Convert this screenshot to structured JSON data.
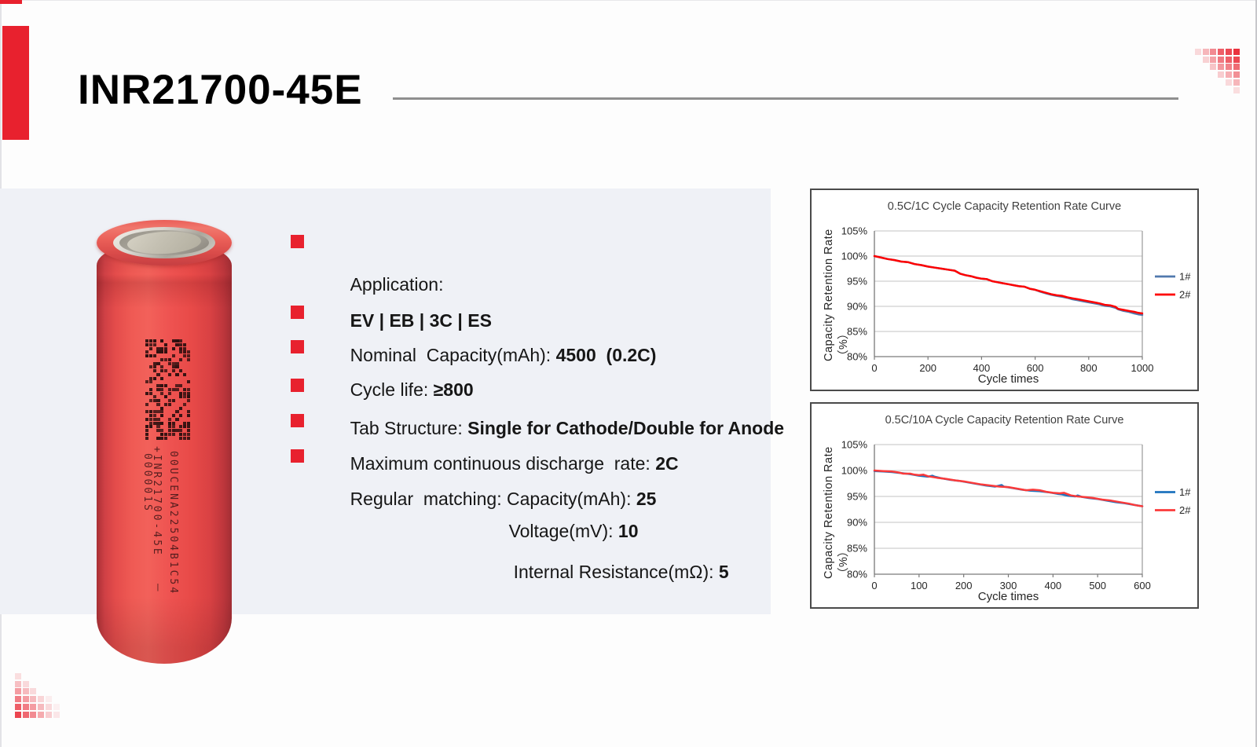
{
  "page": {
    "title": "INR21700-45E"
  },
  "colors": {
    "accent": "#e8212e",
    "panel": "#eff1f6",
    "title_rule": "#8f8f8f"
  },
  "battery": {
    "prints": [
      "+INR21700-45E   －",
      "00UCENA22504B1C54",
      "000001S"
    ]
  },
  "specs": {
    "rows": [
      {
        "label": "Application:",
        "value": ""
      },
      {
        "label": "",
        "value": "EV | EB | 3C | ES"
      },
      {
        "label": "Nominal  Capacity(mAh): ",
        "value": "4500  (0.2C)"
      },
      {
        "label": "Cycle life: ",
        "value": "≥800"
      },
      {
        "label": "Tab Structure: ",
        "value": "Single for Cathode/Double for Anode"
      },
      {
        "label": "Maximum continuous discharge  rate: ",
        "value": "2C"
      },
      {
        "label": "Regular  matching: Capacity(mAh): ",
        "value": "25"
      },
      {
        "label": "Voltage(mV): ",
        "value": "10"
      },
      {
        "label": "Internal Resistance(mΩ): ",
        "value": "5"
      }
    ]
  },
  "chart_data": [
    {
      "type": "line",
      "title": "0.5C/1C Cycle Capacity Retention Rate Curve",
      "xlabel": "Cycle times",
      "ylabel": "Capacity Retention Rate （%）",
      "xlim": [
        0,
        1000
      ],
      "xticks": [
        0,
        200,
        400,
        600,
        800,
        1000
      ],
      "ylim": [
        80,
        105
      ],
      "yticks": [
        80,
        85,
        90,
        95,
        100,
        105
      ],
      "ytick_suffix": "%",
      "grid": true,
      "legend_position": "right",
      "series": [
        {
          "name": "1#",
          "color": "#5079ad",
          "points": [
            [
              0,
              100
            ],
            [
              25,
              99.7
            ],
            [
              50,
              99.4
            ],
            [
              75,
              99.2
            ],
            [
              100,
              98.9
            ],
            [
              125,
              98.8
            ],
            [
              150,
              98.4
            ],
            [
              175,
              98.2
            ],
            [
              200,
              97.9
            ],
            [
              225,
              97.7
            ],
            [
              250,
              97.5
            ],
            [
              275,
              97.3
            ],
            [
              300,
              97.1
            ],
            [
              320,
              96.5
            ],
            [
              340,
              96.2
            ],
            [
              360,
              96.0
            ],
            [
              380,
              95.7
            ],
            [
              400,
              95.5
            ],
            [
              420,
              95.4
            ],
            [
              440,
              95.0
            ],
            [
              460,
              94.8
            ],
            [
              480,
              94.6
            ],
            [
              500,
              94.4
            ],
            [
              520,
              94.2
            ],
            [
              540,
              94.0
            ],
            [
              560,
              93.9
            ],
            [
              580,
              93.5
            ],
            [
              600,
              93.3
            ],
            [
              620,
              92.9
            ],
            [
              640,
              92.6
            ],
            [
              660,
              92.3
            ],
            [
              680,
              92.1
            ],
            [
              700,
              91.9
            ],
            [
              720,
              91.7
            ],
            [
              740,
              91.4
            ],
            [
              760,
              91.2
            ],
            [
              780,
              91.0
            ],
            [
              800,
              90.8
            ],
            [
              820,
              90.6
            ],
            [
              840,
              90.4
            ],
            [
              860,
              90.1
            ],
            [
              880,
              90.0
            ],
            [
              900,
              89.7
            ],
            [
              910,
              89.4
            ],
            [
              930,
              89.1
            ],
            [
              950,
              88.9
            ],
            [
              970,
              88.6
            ],
            [
              985,
              88.4
            ],
            [
              1000,
              88.3
            ]
          ]
        },
        {
          "name": "2#",
          "color": "#fe0000",
          "points": [
            [
              0,
              100
            ],
            [
              25,
              99.7
            ],
            [
              50,
              99.4
            ],
            [
              75,
              99.2
            ],
            [
              100,
              98.9
            ],
            [
              125,
              98.8
            ],
            [
              150,
              98.4
            ],
            [
              175,
              98.2
            ],
            [
              200,
              97.9
            ],
            [
              225,
              97.7
            ],
            [
              250,
              97.5
            ],
            [
              275,
              97.3
            ],
            [
              300,
              97.1
            ],
            [
              320,
              96.5
            ],
            [
              340,
              96.2
            ],
            [
              360,
              96.0
            ],
            [
              380,
              95.7
            ],
            [
              400,
              95.5
            ],
            [
              420,
              95.4
            ],
            [
              440,
              95.0
            ],
            [
              460,
              94.8
            ],
            [
              480,
              94.6
            ],
            [
              500,
              94.4
            ],
            [
              520,
              94.2
            ],
            [
              540,
              94.0
            ],
            [
              560,
              93.9
            ],
            [
              580,
              93.5
            ],
            [
              600,
              93.3
            ],
            [
              620,
              93.0
            ],
            [
              640,
              92.7
            ],
            [
              660,
              92.4
            ],
            [
              680,
              92.2
            ],
            [
              700,
              92.1
            ],
            [
              720,
              91.8
            ],
            [
              740,
              91.6
            ],
            [
              760,
              91.4
            ],
            [
              780,
              91.2
            ],
            [
              800,
              91.0
            ],
            [
              820,
              90.8
            ],
            [
              840,
              90.6
            ],
            [
              860,
              90.3
            ],
            [
              880,
              90.2
            ],
            [
              900,
              89.9
            ],
            [
              910,
              89.5
            ],
            [
              930,
              89.3
            ],
            [
              950,
              89.1
            ],
            [
              970,
              88.9
            ],
            [
              985,
              88.7
            ],
            [
              1000,
              88.6
            ]
          ]
        }
      ]
    },
    {
      "type": "line",
      "title": "0.5C/10A Cycle Capacity Retention Rate Curve",
      "xlabel": "Cycle times",
      "ylabel": "Capacity Retention Rate （%）",
      "xlim": [
        0,
        600
      ],
      "xticks": [
        0,
        100,
        200,
        300,
        400,
        500,
        600
      ],
      "ylim": [
        80,
        105
      ],
      "yticks": [
        80,
        85,
        90,
        95,
        100,
        105
      ],
      "ytick_suffix": "%",
      "grid": true,
      "legend_position": "right",
      "series": [
        {
          "name": "1#",
          "color": "#1e73be",
          "points": [
            [
              0,
              99.9
            ],
            [
              20,
              99.8
            ],
            [
              40,
              99.7
            ],
            [
              60,
              99.5
            ],
            [
              80,
              99.3
            ],
            [
              100,
              99.0
            ],
            [
              120,
              98.8
            ],
            [
              130,
              99.0
            ],
            [
              135,
              98.8
            ],
            [
              150,
              98.5
            ],
            [
              170,
              98.2
            ],
            [
              190,
              98.0
            ],
            [
              210,
              97.7
            ],
            [
              230,
              97.4
            ],
            [
              250,
              97.1
            ],
            [
              270,
              96.9
            ],
            [
              285,
              97.2
            ],
            [
              290,
              96.9
            ],
            [
              310,
              96.6
            ],
            [
              330,
              96.3
            ],
            [
              350,
              96.1
            ],
            [
              370,
              96.0
            ],
            [
              390,
              95.8
            ],
            [
              410,
              95.5
            ],
            [
              420,
              95.4
            ],
            [
              435,
              95.1
            ],
            [
              450,
              95.0
            ],
            [
              455,
              95.2
            ],
            [
              465,
              94.9
            ],
            [
              480,
              94.7
            ],
            [
              500,
              94.5
            ],
            [
              520,
              94.2
            ],
            [
              540,
              93.9
            ],
            [
              560,
              93.7
            ],
            [
              580,
              93.4
            ],
            [
              600,
              93.1
            ]
          ]
        },
        {
          "name": "2#",
          "color": "#fb3a3a",
          "points": [
            [
              0,
              100
            ],
            [
              20,
              99.9
            ],
            [
              40,
              99.8
            ],
            [
              55,
              99.6
            ],
            [
              65,
              99.4
            ],
            [
              80,
              99.4
            ],
            [
              90,
              99.2
            ],
            [
              100,
              99.1
            ],
            [
              110,
              99.2
            ],
            [
              120,
              98.9
            ],
            [
              140,
              98.6
            ],
            [
              160,
              98.4
            ],
            [
              180,
              98.1
            ],
            [
              200,
              97.9
            ],
            [
              220,
              97.6
            ],
            [
              240,
              97.3
            ],
            [
              260,
              97.1
            ],
            [
              280,
              96.9
            ],
            [
              300,
              96.8
            ],
            [
              320,
              96.5
            ],
            [
              340,
              96.2
            ],
            [
              355,
              96.3
            ],
            [
              370,
              96.2
            ],
            [
              385,
              95.9
            ],
            [
              400,
              95.7
            ],
            [
              415,
              95.6
            ],
            [
              425,
              95.7
            ],
            [
              440,
              95.2
            ],
            [
              455,
              95.0
            ],
            [
              470,
              94.9
            ],
            [
              490,
              94.7
            ],
            [
              510,
              94.4
            ],
            [
              530,
              94.2
            ],
            [
              550,
              93.9
            ],
            [
              570,
              93.6
            ],
            [
              585,
              93.3
            ],
            [
              600,
              93.1
            ]
          ]
        }
      ]
    }
  ]
}
